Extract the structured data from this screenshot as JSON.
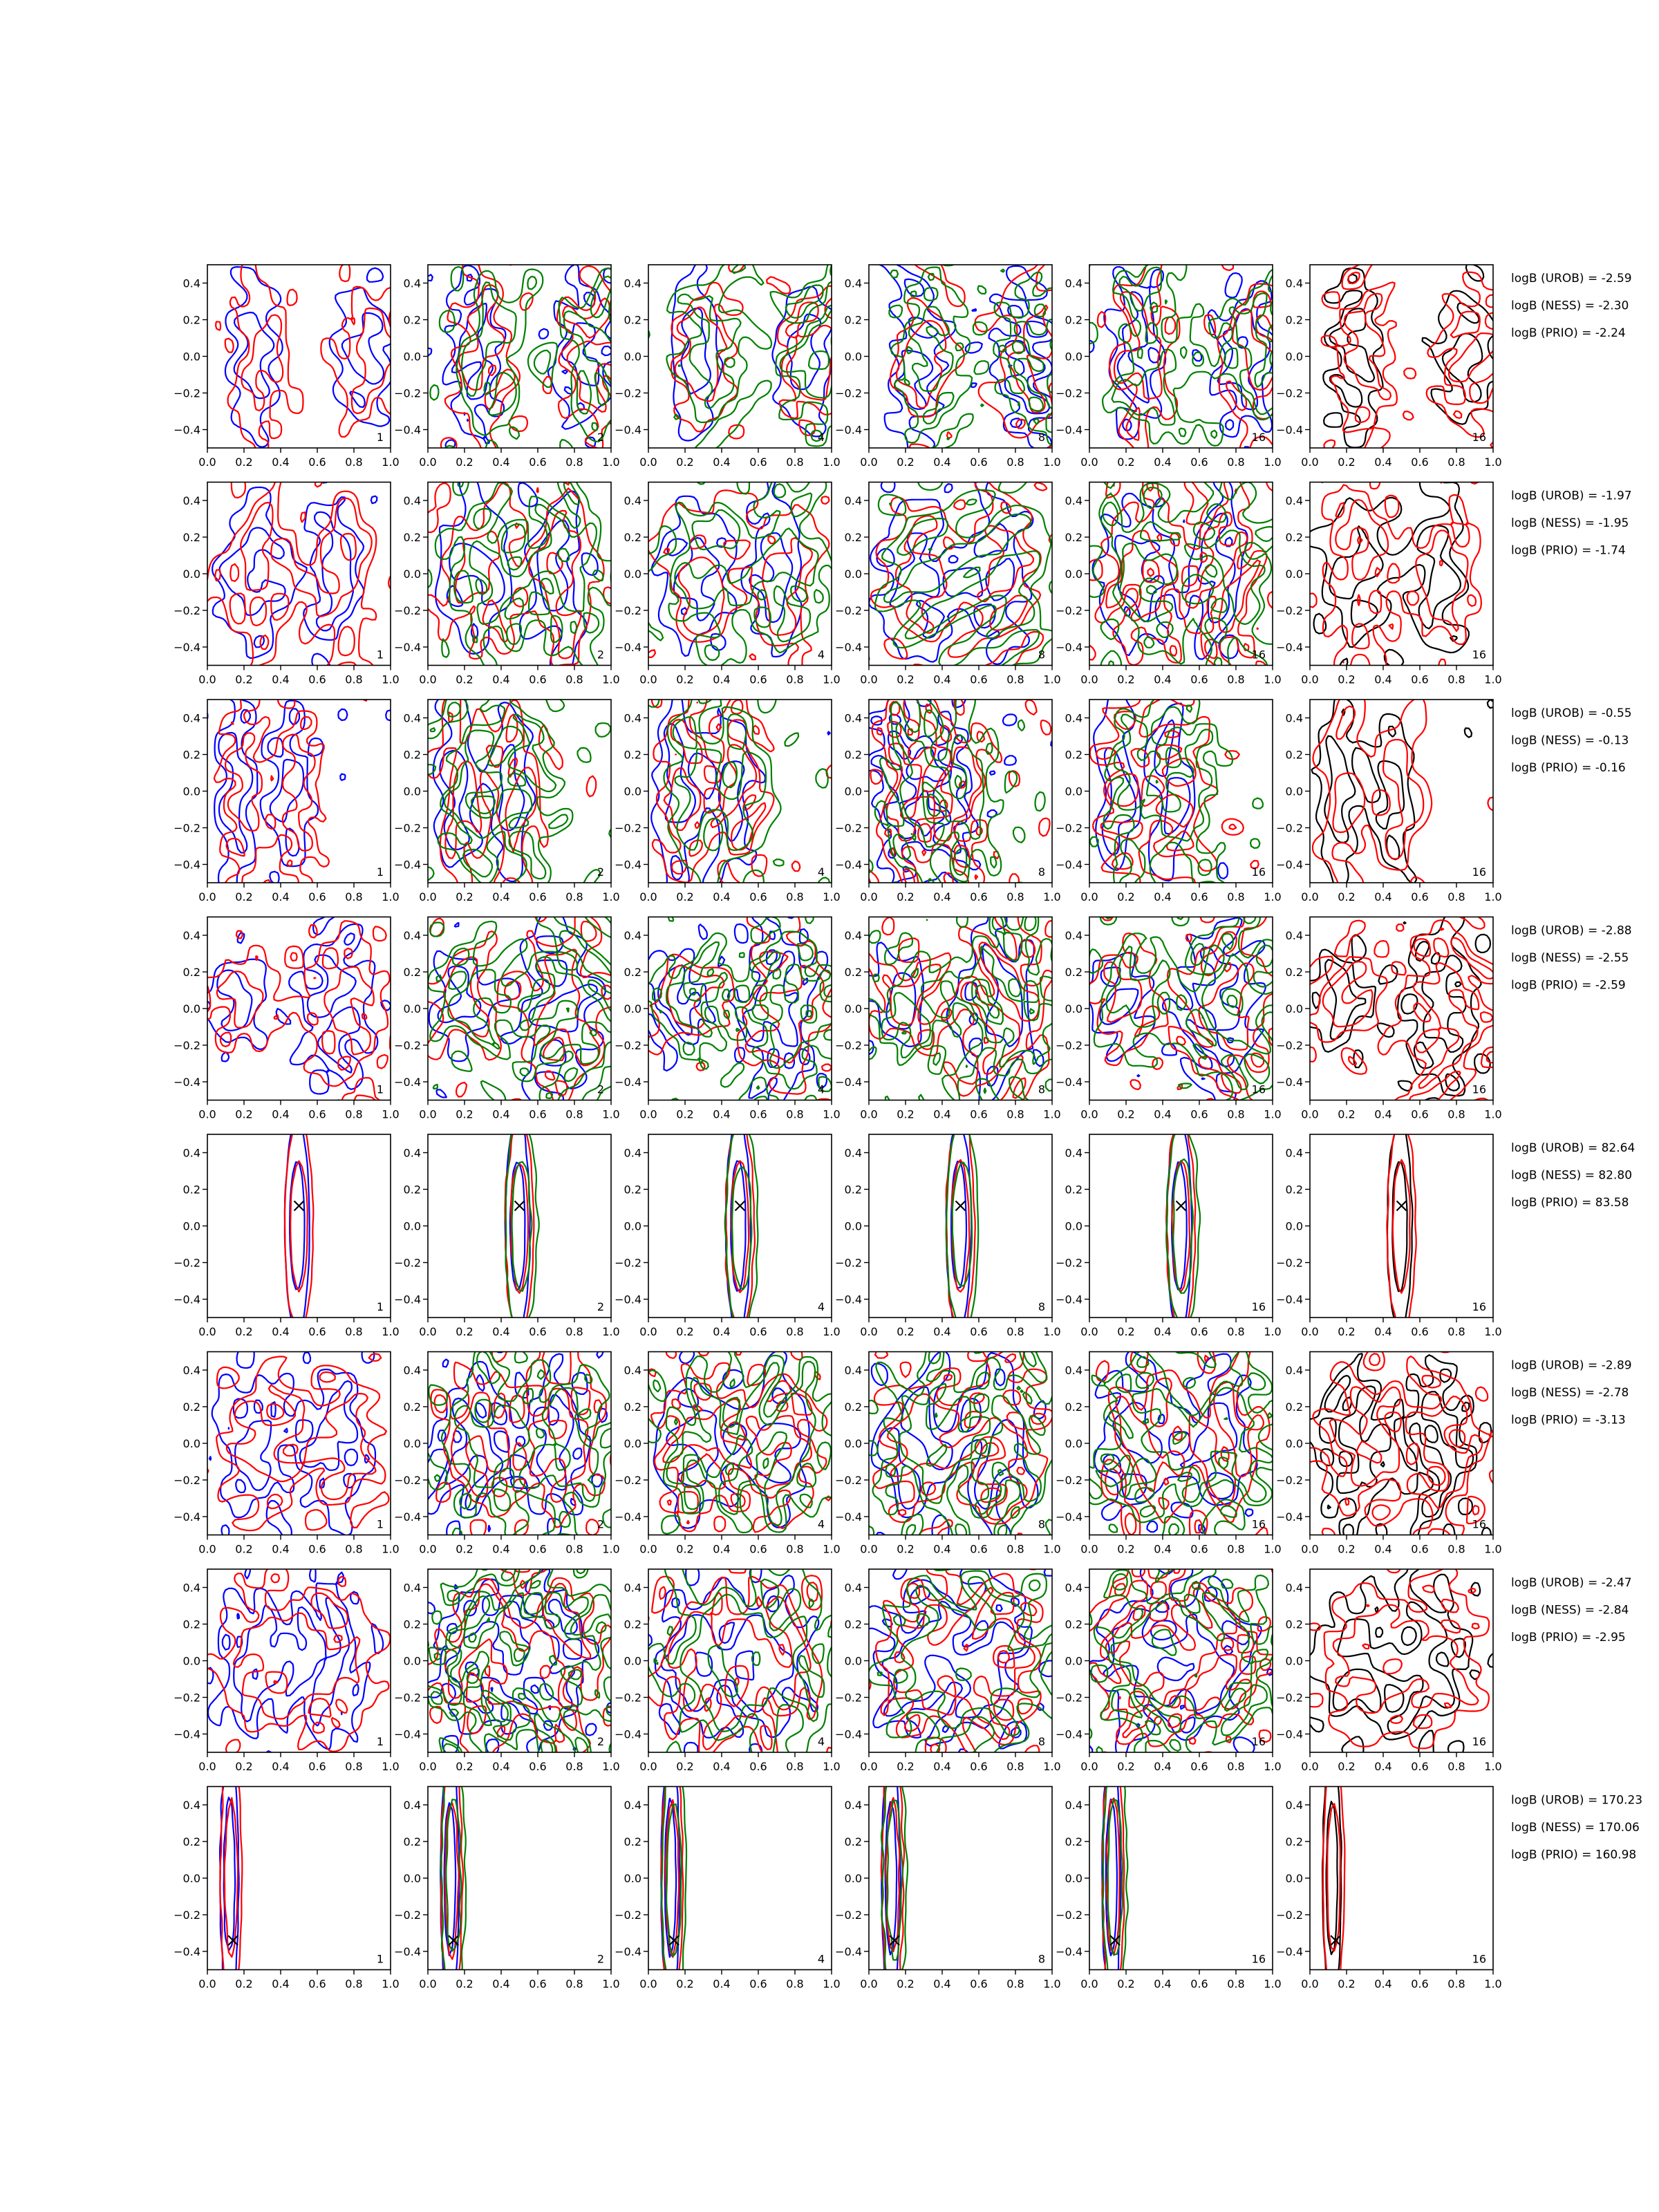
{
  "figure": {
    "columns": [
      "1",
      "2",
      "4",
      "8",
      "16",
      "16"
    ],
    "colors": {
      "blue": "#0000ff",
      "red": "#ff0000",
      "green": "#008000",
      "black": "#000000",
      "marker": "#000000"
    }
  },
  "chart_data": {
    "type": "contour-grid",
    "xlim": [
      0.0,
      1.0
    ],
    "ylim": [
      -0.5,
      0.5
    ],
    "xticks": [
      "0.0",
      "0.2",
      "0.4",
      "0.6",
      "0.8",
      "1.0"
    ],
    "yticks": [
      "0.4",
      "0.2",
      "0.0",
      "−0.2",
      "−0.4"
    ],
    "grid": false,
    "rows": [
      {
        "metrics": [
          "logB (UROB) = -2.59",
          "logB (NESS) = -2.30",
          "logB (PRIO) = -2.24"
        ],
        "marker": null,
        "peaks": [
          {
            "x": 0.3,
            "y": 0.0,
            "sx": 0.1,
            "sy": 0.35
          },
          {
            "x": 0.9,
            "y": 0.0,
            "sx": 0.12,
            "sy": 0.3
          }
        ]
      },
      {
        "metrics": [
          "logB (UROB) = -1.97",
          "logB (NESS) = -1.95",
          "logB (PRIO) = -1.74"
        ],
        "marker": null,
        "peaks": [
          {
            "x": 0.3,
            "y": 0.0,
            "sx": 0.15,
            "sy": 0.3
          },
          {
            "x": 0.75,
            "y": 0.0,
            "sx": 0.1,
            "sy": 0.35
          }
        ]
      },
      {
        "metrics": [
          "logB (UROB) = -0.55",
          "logB (NESS) = -0.13",
          "logB (PRIO) = -0.16"
        ],
        "marker": null,
        "peaks": [
          {
            "x": 0.2,
            "y": 0.0,
            "sx": 0.08,
            "sy": 0.4
          },
          {
            "x": 0.5,
            "y": 0.0,
            "sx": 0.08,
            "sy": 0.35
          }
        ]
      },
      {
        "metrics": [
          "logB (UROB) = -2.88",
          "logB (NESS) = -2.55",
          "logB (PRIO) = -2.59"
        ],
        "marker": null,
        "peaks": [
          {
            "x": 0.2,
            "y": 0.05,
            "sx": 0.12,
            "sy": 0.2
          },
          {
            "x": 0.75,
            "y": 0.0,
            "sx": 0.15,
            "sy": 0.35
          }
        ]
      },
      {
        "metrics": [
          "logB (UROB) = 82.64",
          "logB (NESS) = 82.80",
          "logB (PRIO) = 83.58"
        ],
        "marker": {
          "x": 0.5,
          "y": 0.11
        },
        "peaks": [
          {
            "x": 0.5,
            "y": 0.0,
            "sx": 0.04,
            "sy": 0.35
          }
        ]
      },
      {
        "metrics": [
          "logB (UROB) = -2.89",
          "logB (NESS) = -2.78",
          "logB (PRIO) = -3.13"
        ],
        "marker": null,
        "peaks": [
          {
            "x": 0.3,
            "y": 0.0,
            "sx": 0.15,
            "sy": 0.3
          },
          {
            "x": 0.75,
            "y": 0.0,
            "sx": 0.12,
            "sy": 0.3
          }
        ]
      },
      {
        "metrics": [
          "logB (UROB) = -2.47",
          "logB (NESS) = -2.84",
          "logB (PRIO) = -2.95"
        ],
        "marker": null,
        "peaks": [
          {
            "x": 0.3,
            "y": 0.0,
            "sx": 0.15,
            "sy": 0.3
          },
          {
            "x": 0.7,
            "y": 0.0,
            "sx": 0.15,
            "sy": 0.3
          }
        ]
      },
      {
        "metrics": [
          "logB (UROB) = 170.23",
          "logB (NESS) = 170.06",
          "logB (PRIO) = 160.98"
        ],
        "marker": {
          "x": 0.14,
          "y": -0.34
        },
        "peaks": [
          {
            "x": 0.13,
            "y": 0.0,
            "sx": 0.03,
            "sy": 0.42
          }
        ]
      }
    ]
  }
}
